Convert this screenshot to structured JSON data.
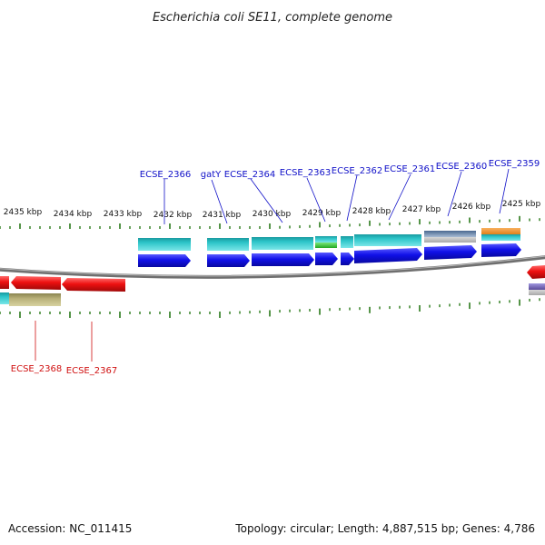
{
  "title": "Escherichia coli SE11, complete genome",
  "footer": {
    "accession": "Accession: NC_011415",
    "summary": "Topology: circular; Length: 4,887,515 bp; Genes: 4,786"
  },
  "colors": {
    "tick": "#2a7a1a",
    "backbone": "#7a7a7a",
    "forward_label": "#1010c8",
    "reverse_label": "#d01010",
    "cds_forward": "#1010e8",
    "cds_reverse": "#ee1111",
    "gene_teal": "#2cc4c8",
    "gene_olive": "#b8b078",
    "gene_orange": "#f0922a",
    "gene_green": "#3cc83c",
    "gene_steel": "#6a88b0",
    "gene_purple": "#7a6ab8"
  },
  "kbp_labels": [
    "2435 kbp",
    "2434 kbp",
    "2433 kbp",
    "2432 kbp",
    "2431 kbp",
    "2430 kbp",
    "2429 kbp",
    "2428 kbp",
    "2427 kbp",
    "2426 kbp",
    "2425 kbp"
  ],
  "forward_gene_labels": [
    "ECSE_2366",
    "gatY",
    "ECSE_2364",
    "ECSE_2363",
    "ECSE_2362",
    "ECSE_2361",
    "ECSE_2360",
    "ECSE_2359"
  ],
  "reverse_gene_labels": [
    "ECSE_2368",
    "ECSE_2367"
  ]
}
